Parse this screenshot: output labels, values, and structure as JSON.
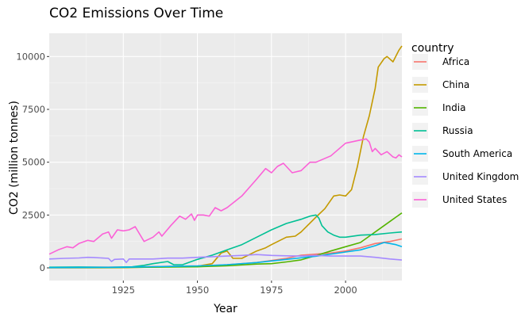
{
  "chart_data": {
    "type": "line",
    "title": "CO2 Emissions Over Time",
    "xlabel": "Year",
    "ylabel": "CO2 (million tonnes)",
    "xlim": [
      1900,
      2019
    ],
    "ylim": [
      -600,
      11100
    ],
    "x_ticks": [
      1925,
      1950,
      1975,
      2000
    ],
    "y_ticks": [
      0,
      2500,
      5000,
      7500,
      10000
    ],
    "x_tick_labels": [
      "1925",
      "1950",
      "1975",
      "2000"
    ],
    "y_tick_labels": [
      "0",
      "2500",
      "5000",
      "7500",
      "10000"
    ],
    "grid": true,
    "legend": {
      "title": "country",
      "position": "right"
    },
    "series": [
      {
        "name": "Africa",
        "color": "#F8766D",
        "points": [
          [
            1900,
            25
          ],
          [
            1925,
            35
          ],
          [
            1950,
            90
          ],
          [
            1960,
            150
          ],
          [
            1970,
            250
          ],
          [
            1980,
            450
          ],
          [
            1985,
            600
          ],
          [
            1990,
            650
          ],
          [
            1995,
            700
          ],
          [
            2000,
            800
          ],
          [
            2005,
            950
          ],
          [
            2010,
            1150
          ],
          [
            2015,
            1250
          ],
          [
            2019,
            1370
          ]
        ]
      },
      {
        "name": "China",
        "color": "#C49A00",
        "points": [
          [
            1900,
            0
          ],
          [
            1925,
            10
          ],
          [
            1950,
            80
          ],
          [
            1955,
            200
          ],
          [
            1958,
            700
          ],
          [
            1960,
            800
          ],
          [
            1962,
            450
          ],
          [
            1965,
            450
          ],
          [
            1970,
            800
          ],
          [
            1973,
            950
          ],
          [
            1975,
            1100
          ],
          [
            1980,
            1450
          ],
          [
            1983,
            1500
          ],
          [
            1985,
            1700
          ],
          [
            1990,
            2400
          ],
          [
            1993,
            2800
          ],
          [
            1996,
            3400
          ],
          [
            1998,
            3450
          ],
          [
            2000,
            3400
          ],
          [
            2002,
            3700
          ],
          [
            2004,
            4800
          ],
          [
            2006,
            6200
          ],
          [
            2008,
            7200
          ],
          [
            2010,
            8500
          ],
          [
            2011,
            9500
          ],
          [
            2013,
            9900
          ],
          [
            2014,
            10000
          ],
          [
            2016,
            9750
          ],
          [
            2018,
            10300
          ],
          [
            2019,
            10500
          ]
        ]
      },
      {
        "name": "India",
        "color": "#53B400",
        "points": [
          [
            1900,
            10
          ],
          [
            1925,
            20
          ],
          [
            1950,
            50
          ],
          [
            1960,
            100
          ],
          [
            1970,
            180
          ],
          [
            1975,
            200
          ],
          [
            1980,
            280
          ],
          [
            1985,
            380
          ],
          [
            1990,
            580
          ],
          [
            1995,
            800
          ],
          [
            2000,
            1000
          ],
          [
            2005,
            1200
          ],
          [
            2008,
            1500
          ],
          [
            2010,
            1700
          ],
          [
            2013,
            2000
          ],
          [
            2015,
            2200
          ],
          [
            2017,
            2400
          ],
          [
            2019,
            2600
          ]
        ]
      },
      {
        "name": "Russia",
        "color": "#00C094",
        "points": [
          [
            1900,
            30
          ],
          [
            1910,
            40
          ],
          [
            1920,
            25
          ],
          [
            1928,
            50
          ],
          [
            1932,
            120
          ],
          [
            1935,
            200
          ],
          [
            1940,
            300
          ],
          [
            1942,
            150
          ],
          [
            1945,
            150
          ],
          [
            1950,
            400
          ],
          [
            1955,
            600
          ],
          [
            1960,
            850
          ],
          [
            1965,
            1100
          ],
          [
            1970,
            1450
          ],
          [
            1975,
            1800
          ],
          [
            1980,
            2100
          ],
          [
            1985,
            2300
          ],
          [
            1988,
            2450
          ],
          [
            1990,
            2500
          ],
          [
            1991,
            2350
          ],
          [
            1992,
            2000
          ],
          [
            1994,
            1700
          ],
          [
            1996,
            1550
          ],
          [
            1998,
            1450
          ],
          [
            2000,
            1450
          ],
          [
            2005,
            1550
          ],
          [
            2010,
            1580
          ],
          [
            2015,
            1650
          ],
          [
            2019,
            1700
          ]
        ]
      },
      {
        "name": "South America",
        "color": "#00B6EB",
        "points": [
          [
            1900,
            10
          ],
          [
            1925,
            30
          ],
          [
            1950,
            90
          ],
          [
            1960,
            150
          ],
          [
            1970,
            250
          ],
          [
            1980,
            400
          ],
          [
            1990,
            550
          ],
          [
            2000,
            750
          ],
          [
            2005,
            850
          ],
          [
            2010,
            1050
          ],
          [
            2013,
            1200
          ],
          [
            2015,
            1150
          ],
          [
            2017,
            1100
          ],
          [
            2019,
            1000
          ]
        ]
      },
      {
        "name": "United Kingdom",
        "color": "#A58AFF",
        "points": [
          [
            1900,
            420
          ],
          [
            1905,
            450
          ],
          [
            1910,
            470
          ],
          [
            1913,
            500
          ],
          [
            1915,
            490
          ],
          [
            1920,
            450
          ],
          [
            1921,
            300
          ],
          [
            1922,
            400
          ],
          [
            1925,
            420
          ],
          [
            1926,
            250
          ],
          [
            1927,
            420
          ],
          [
            1930,
            420
          ],
          [
            1935,
            420
          ],
          [
            1940,
            460
          ],
          [
            1945,
            460
          ],
          [
            1950,
            500
          ],
          [
            1955,
            530
          ],
          [
            1960,
            560
          ],
          [
            1965,
            590
          ],
          [
            1970,
            630
          ],
          [
            1975,
            590
          ],
          [
            1980,
            570
          ],
          [
            1985,
            560
          ],
          [
            1990,
            590
          ],
          [
            1995,
            560
          ],
          [
            2000,
            560
          ],
          [
            2005,
            560
          ],
          [
            2010,
            500
          ],
          [
            2015,
            420
          ],
          [
            2019,
            370
          ]
        ]
      },
      {
        "name": "United States",
        "color": "#FB61D7",
        "points": [
          [
            1900,
            650
          ],
          [
            1903,
            850
          ],
          [
            1906,
            1000
          ],
          [
            1908,
            950
          ],
          [
            1910,
            1150
          ],
          [
            1913,
            1300
          ],
          [
            1915,
            1250
          ],
          [
            1918,
            1600
          ],
          [
            1920,
            1700
          ],
          [
            1921,
            1400
          ],
          [
            1923,
            1800
          ],
          [
            1925,
            1750
          ],
          [
            1927,
            1800
          ],
          [
            1929,
            1950
          ],
          [
            1932,
            1250
          ],
          [
            1935,
            1450
          ],
          [
            1937,
            1700
          ],
          [
            1938,
            1500
          ],
          [
            1941,
            2000
          ],
          [
            1944,
            2450
          ],
          [
            1946,
            2300
          ],
          [
            1948,
            2550
          ],
          [
            1949,
            2250
          ],
          [
            1950,
            2500
          ],
          [
            1952,
            2500
          ],
          [
            1954,
            2450
          ],
          [
            1956,
            2850
          ],
          [
            1958,
            2700
          ],
          [
            1960,
            2850
          ],
          [
            1965,
            3400
          ],
          [
            1970,
            4200
          ],
          [
            1973,
            4700
          ],
          [
            1975,
            4500
          ],
          [
            1977,
            4800
          ],
          [
            1979,
            4950
          ],
          [
            1982,
            4500
          ],
          [
            1985,
            4600
          ],
          [
            1988,
            5000
          ],
          [
            1990,
            5000
          ],
          [
            1995,
            5300
          ],
          [
            2000,
            5900
          ],
          [
            2005,
            6050
          ],
          [
            2007,
            6100
          ],
          [
            2008,
            5950
          ],
          [
            2009,
            5500
          ],
          [
            2010,
            5650
          ],
          [
            2012,
            5350
          ],
          [
            2014,
            5500
          ],
          [
            2016,
            5250
          ],
          [
            2017,
            5200
          ],
          [
            2018,
            5350
          ],
          [
            2019,
            5250
          ]
        ]
      }
    ]
  }
}
